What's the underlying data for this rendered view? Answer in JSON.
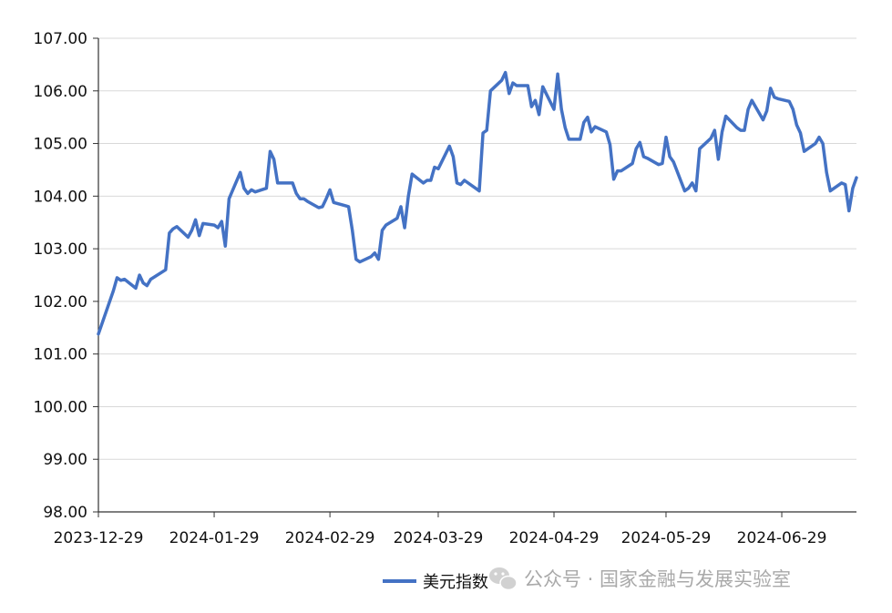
{
  "chart_data": {
    "type": "line",
    "title": "",
    "xlabel": "",
    "ylabel": "",
    "ylim": [
      98,
      107
    ],
    "y_ticks": [
      "98.00",
      "99.00",
      "100.00",
      "101.00",
      "102.00",
      "103.00",
      "104.00",
      "105.00",
      "106.00",
      "107.00"
    ],
    "x_ticks": [
      "2023-12-29",
      "2024-01-29",
      "2024-02-29",
      "2024-03-29",
      "2024-04-29",
      "2024-05-29",
      "2024-06-29"
    ],
    "x_range": [
      "2023-12-29",
      "2024-07-19"
    ],
    "grid": "horizontal",
    "legend_position": "bottom",
    "series": [
      {
        "name": "美元指数",
        "color": "#4472C4",
        "points": [
          [
            "2023-12-29",
            101.38
          ],
          [
            "2024-01-02",
            102.2
          ],
          [
            "2024-01-03",
            102.45
          ],
          [
            "2024-01-04",
            102.4
          ],
          [
            "2024-01-05",
            102.42
          ],
          [
            "2024-01-08",
            102.25
          ],
          [
            "2024-01-09",
            102.5
          ],
          [
            "2024-01-10",
            102.35
          ],
          [
            "2024-01-11",
            102.3
          ],
          [
            "2024-01-12",
            102.42
          ],
          [
            "2024-01-16",
            102.6
          ],
          [
            "2024-01-17",
            103.3
          ],
          [
            "2024-01-18",
            103.38
          ],
          [
            "2024-01-19",
            103.42
          ],
          [
            "2024-01-22",
            103.22
          ],
          [
            "2024-01-23",
            103.35
          ],
          [
            "2024-01-24",
            103.55
          ],
          [
            "2024-01-25",
            103.25
          ],
          [
            "2024-01-26",
            103.48
          ],
          [
            "2024-01-29",
            103.45
          ],
          [
            "2024-01-30",
            103.4
          ],
          [
            "2024-01-31",
            103.52
          ],
          [
            "2024-02-01",
            103.05
          ],
          [
            "2024-02-02",
            103.95
          ],
          [
            "2024-02-05",
            104.45
          ],
          [
            "2024-02-06",
            104.15
          ],
          [
            "2024-02-07",
            104.05
          ],
          [
            "2024-02-08",
            104.12
          ],
          [
            "2024-02-09",
            104.08
          ],
          [
            "2024-02-12",
            104.15
          ],
          [
            "2024-02-13",
            104.85
          ],
          [
            "2024-02-14",
            104.7
          ],
          [
            "2024-02-15",
            104.25
          ],
          [
            "2024-02-16",
            104.25
          ],
          [
            "2024-02-19",
            104.25
          ],
          [
            "2024-02-20",
            104.05
          ],
          [
            "2024-02-21",
            103.95
          ],
          [
            "2024-02-22",
            103.95
          ],
          [
            "2024-02-23",
            103.9
          ],
          [
            "2024-02-26",
            103.78
          ],
          [
            "2024-02-27",
            103.8
          ],
          [
            "2024-02-28",
            103.95
          ],
          [
            "2024-02-29",
            104.12
          ],
          [
            "2024-03-01",
            103.88
          ],
          [
            "2024-03-04",
            103.82
          ],
          [
            "2024-03-05",
            103.8
          ],
          [
            "2024-03-06",
            103.35
          ],
          [
            "2024-03-07",
            102.8
          ],
          [
            "2024-03-08",
            102.75
          ],
          [
            "2024-03-11",
            102.85
          ],
          [
            "2024-03-12",
            102.92
          ],
          [
            "2024-03-13",
            102.8
          ],
          [
            "2024-03-14",
            103.35
          ],
          [
            "2024-03-15",
            103.45
          ],
          [
            "2024-03-18",
            103.58
          ],
          [
            "2024-03-19",
            103.8
          ],
          [
            "2024-03-20",
            103.4
          ],
          [
            "2024-03-21",
            104.0
          ],
          [
            "2024-03-22",
            104.42
          ],
          [
            "2024-03-25",
            104.25
          ],
          [
            "2024-03-26",
            104.3
          ],
          [
            "2024-03-27",
            104.3
          ],
          [
            "2024-03-28",
            104.55
          ],
          [
            "2024-03-29",
            104.52
          ],
          [
            "2024-04-01",
            104.95
          ],
          [
            "2024-04-02",
            104.75
          ],
          [
            "2024-04-03",
            104.25
          ],
          [
            "2024-04-04",
            104.22
          ],
          [
            "2024-04-05",
            104.3
          ],
          [
            "2024-04-08",
            104.15
          ],
          [
            "2024-04-09",
            104.1
          ],
          [
            "2024-04-10",
            105.2
          ],
          [
            "2024-04-11",
            105.25
          ],
          [
            "2024-04-12",
            106.0
          ],
          [
            "2024-04-15",
            106.2
          ],
          [
            "2024-04-16",
            106.35
          ],
          [
            "2024-04-17",
            105.95
          ],
          [
            "2024-04-18",
            106.15
          ],
          [
            "2024-04-19",
            106.1
          ],
          [
            "2024-04-22",
            106.1
          ],
          [
            "2024-04-23",
            105.7
          ],
          [
            "2024-04-24",
            105.82
          ],
          [
            "2024-04-25",
            105.55
          ],
          [
            "2024-04-26",
            106.08
          ],
          [
            "2024-04-29",
            105.65
          ],
          [
            "2024-04-30",
            106.32
          ],
          [
            "2024-05-01",
            105.65
          ],
          [
            "2024-05-02",
            105.3
          ],
          [
            "2024-05-03",
            105.08
          ],
          [
            "2024-05-06",
            105.08
          ],
          [
            "2024-05-07",
            105.4
          ],
          [
            "2024-05-08",
            105.5
          ],
          [
            "2024-05-09",
            105.22
          ],
          [
            "2024-05-10",
            105.32
          ],
          [
            "2024-05-13",
            105.22
          ],
          [
            "2024-05-14",
            104.98
          ],
          [
            "2024-05-15",
            104.32
          ],
          [
            "2024-05-16",
            104.48
          ],
          [
            "2024-05-17",
            104.48
          ],
          [
            "2024-05-20",
            104.62
          ],
          [
            "2024-05-21",
            104.9
          ],
          [
            "2024-05-22",
            105.02
          ],
          [
            "2024-05-23",
            104.75
          ],
          [
            "2024-05-24",
            104.72
          ],
          [
            "2024-05-27",
            104.6
          ],
          [
            "2024-05-28",
            104.62
          ],
          [
            "2024-05-29",
            105.12
          ],
          [
            "2024-05-30",
            104.75
          ],
          [
            "2024-05-31",
            104.65
          ],
          [
            "2024-06-03",
            104.1
          ],
          [
            "2024-06-04",
            104.15
          ],
          [
            "2024-06-05",
            104.25
          ],
          [
            "2024-06-06",
            104.1
          ],
          [
            "2024-06-07",
            104.9
          ],
          [
            "2024-06-10",
            105.1
          ],
          [
            "2024-06-11",
            105.25
          ],
          [
            "2024-06-12",
            104.7
          ],
          [
            "2024-06-13",
            105.22
          ],
          [
            "2024-06-14",
            105.52
          ],
          [
            "2024-06-17",
            105.3
          ],
          [
            "2024-06-18",
            105.25
          ],
          [
            "2024-06-19",
            105.25
          ],
          [
            "2024-06-20",
            105.65
          ],
          [
            "2024-06-21",
            105.82
          ],
          [
            "2024-06-24",
            105.45
          ],
          [
            "2024-06-25",
            105.62
          ],
          [
            "2024-06-26",
            106.05
          ],
          [
            "2024-06-27",
            105.88
          ],
          [
            "2024-06-28",
            105.85
          ],
          [
            "2024-07-01",
            105.8
          ],
          [
            "2024-07-02",
            105.65
          ],
          [
            "2024-07-03",
            105.35
          ],
          [
            "2024-07-04",
            105.2
          ],
          [
            "2024-07-05",
            104.85
          ],
          [
            "2024-07-08",
            105.0
          ],
          [
            "2024-07-09",
            105.12
          ],
          [
            "2024-07-10",
            105.0
          ],
          [
            "2024-07-11",
            104.45
          ],
          [
            "2024-07-12",
            104.1
          ],
          [
            "2024-07-15",
            104.25
          ],
          [
            "2024-07-16",
            104.22
          ],
          [
            "2024-07-17",
            103.72
          ],
          [
            "2024-07-18",
            104.15
          ],
          [
            "2024-07-19",
            104.35
          ]
        ]
      }
    ]
  },
  "watermark": {
    "icon": "wechat-icon",
    "text": "公众号 · 国家金融与发展实验室"
  }
}
